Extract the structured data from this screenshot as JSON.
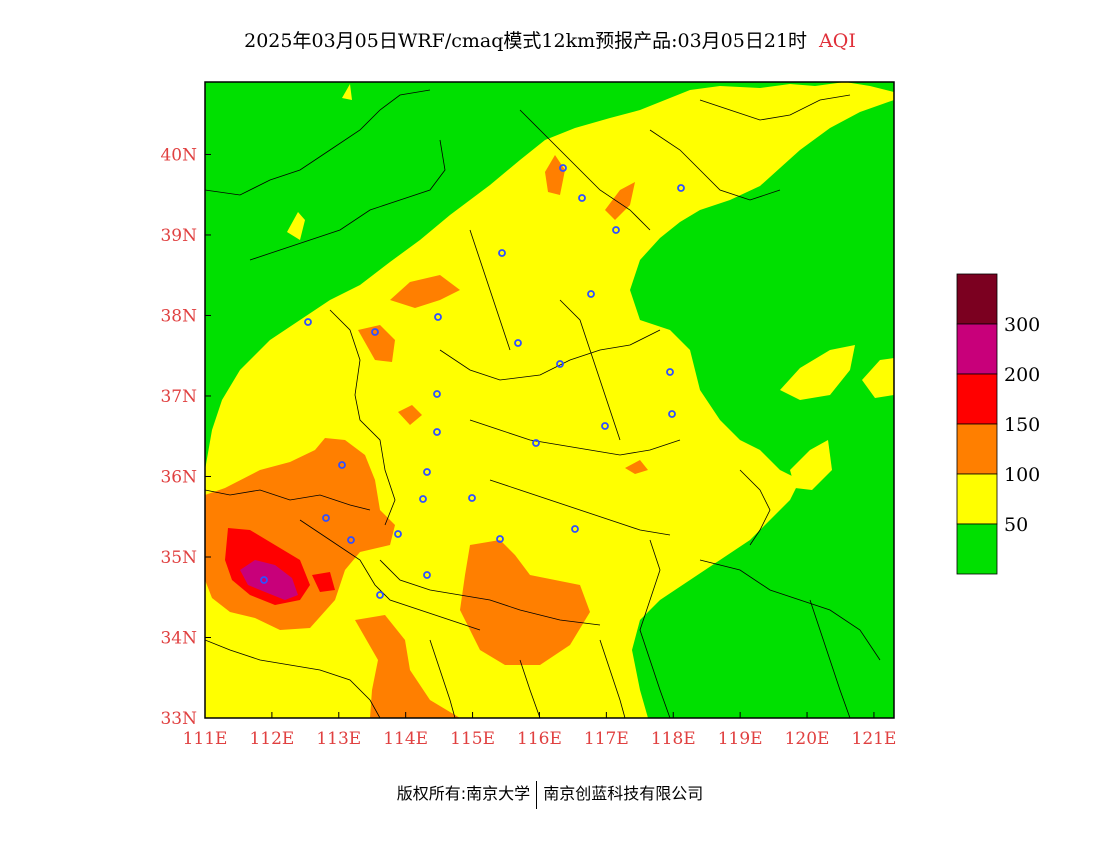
{
  "title": {
    "text": "2025年03月05日WRF/cmaq模式12km预报产品:03月05日21时",
    "pollutant": "AQI"
  },
  "map": {
    "x_ticks": [
      "111E",
      "112E",
      "113E",
      "114E",
      "115E",
      "116E",
      "117E",
      "118E",
      "119E",
      "120E",
      "121E"
    ],
    "y_ticks": [
      "40N",
      "39N",
      "38N",
      "37N",
      "36N",
      "35N",
      "34N",
      "33N"
    ],
    "lon_range": [
      111,
      121.3
    ],
    "lat_range": [
      33,
      40.9
    ],
    "tick_color": "#e04040"
  },
  "legend": {
    "labels": [
      "300",
      "200",
      "150",
      "100",
      "50"
    ],
    "colors": [
      "#7b0020",
      "#c8007a",
      "#ff0000",
      "#ff7f00",
      "#ffff00",
      "#00e000"
    ]
  },
  "copyright": {
    "left": "版权所有:南京大学",
    "right": "南京创蓝科技有限公司"
  }
}
